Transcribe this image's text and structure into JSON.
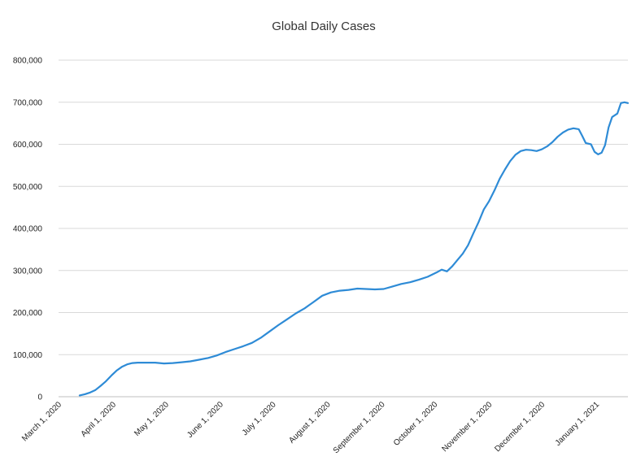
{
  "chart_data": {
    "type": "line",
    "title": "Global Daily Cases",
    "xlabel": "",
    "ylabel": "",
    "ylim": [
      0,
      800000
    ],
    "y_ticks": [
      0,
      100000,
      200000,
      300000,
      400000,
      500000,
      600000,
      700000,
      800000
    ],
    "y_tick_labels": [
      "0",
      "100,000",
      "200,000",
      "300,000",
      "400,000",
      "500,000",
      "600,000",
      "700,000",
      "800,000"
    ],
    "x_range": [
      "2020-03-01",
      "2021-01-19"
    ],
    "x_ticks": [
      "2020-03-01",
      "2020-04-01",
      "2020-05-01",
      "2020-06-01",
      "2020-07-01",
      "2020-08-01",
      "2020-09-01",
      "2020-10-01",
      "2020-11-01",
      "2020-12-01",
      "2021-01-01"
    ],
    "x_tick_labels": [
      "March 1, 2020",
      "April 1, 2020",
      "May 1, 2020",
      "June 1, 2020",
      "July 1, 2020",
      "August 1, 2020",
      "September 1, 2020",
      "October 1, 2020",
      "November 1, 2020",
      "December 1, 2020",
      "January 1, 2021"
    ],
    "grid": true,
    "legend": false,
    "series": [
      {
        "color": "#2e8bd6",
        "points": [
          [
            "2020-03-13",
            3000
          ],
          [
            "2020-03-16",
            6000
          ],
          [
            "2020-03-19",
            10000
          ],
          [
            "2020-03-22",
            16000
          ],
          [
            "2020-03-25",
            26000
          ],
          [
            "2020-03-28",
            37000
          ],
          [
            "2020-03-31",
            50000
          ],
          [
            "2020-04-03",
            62000
          ],
          [
            "2020-04-06",
            71000
          ],
          [
            "2020-04-09",
            77000
          ],
          [
            "2020-04-12",
            80000
          ],
          [
            "2020-04-15",
            81000
          ],
          [
            "2020-04-20",
            81000
          ],
          [
            "2020-04-25",
            81000
          ],
          [
            "2020-04-30",
            79000
          ],
          [
            "2020-05-05",
            80000
          ],
          [
            "2020-05-10",
            82000
          ],
          [
            "2020-05-15",
            84000
          ],
          [
            "2020-05-20",
            88000
          ],
          [
            "2020-05-25",
            92000
          ],
          [
            "2020-05-30",
            98000
          ],
          [
            "2020-06-04",
            106000
          ],
          [
            "2020-06-09",
            113000
          ],
          [
            "2020-06-14",
            120000
          ],
          [
            "2020-06-19",
            128000
          ],
          [
            "2020-06-24",
            140000
          ],
          [
            "2020-06-29",
            155000
          ],
          [
            "2020-07-04",
            170000
          ],
          [
            "2020-07-09",
            184000
          ],
          [
            "2020-07-14",
            198000
          ],
          [
            "2020-07-19",
            210000
          ],
          [
            "2020-07-24",
            225000
          ],
          [
            "2020-07-29",
            240000
          ],
          [
            "2020-08-03",
            248000
          ],
          [
            "2020-08-08",
            252000
          ],
          [
            "2020-08-13",
            254000
          ],
          [
            "2020-08-18",
            257000
          ],
          [
            "2020-08-23",
            256000
          ],
          [
            "2020-08-28",
            255000
          ],
          [
            "2020-09-02",
            256000
          ],
          [
            "2020-09-07",
            262000
          ],
          [
            "2020-09-12",
            268000
          ],
          [
            "2020-09-17",
            272000
          ],
          [
            "2020-09-22",
            278000
          ],
          [
            "2020-09-27",
            285000
          ],
          [
            "2020-10-02",
            295000
          ],
          [
            "2020-10-05",
            302000
          ],
          [
            "2020-10-08",
            298000
          ],
          [
            "2020-10-11",
            310000
          ],
          [
            "2020-10-14",
            325000
          ],
          [
            "2020-10-17",
            340000
          ],
          [
            "2020-10-20",
            360000
          ],
          [
            "2020-10-23",
            388000
          ],
          [
            "2020-10-26",
            415000
          ],
          [
            "2020-10-29",
            445000
          ],
          [
            "2020-11-01",
            465000
          ],
          [
            "2020-11-04",
            490000
          ],
          [
            "2020-11-07",
            518000
          ],
          [
            "2020-11-10",
            540000
          ],
          [
            "2020-11-13",
            560000
          ],
          [
            "2020-11-16",
            575000
          ],
          [
            "2020-11-19",
            584000
          ],
          [
            "2020-11-22",
            587000
          ],
          [
            "2020-11-25",
            586000
          ],
          [
            "2020-11-28",
            584000
          ],
          [
            "2020-12-01",
            588000
          ],
          [
            "2020-12-04",
            595000
          ],
          [
            "2020-12-07",
            605000
          ],
          [
            "2020-12-10",
            618000
          ],
          [
            "2020-12-13",
            628000
          ],
          [
            "2020-12-16",
            635000
          ],
          [
            "2020-12-19",
            638000
          ],
          [
            "2020-12-22",
            636000
          ],
          [
            "2020-12-24",
            620000
          ],
          [
            "2020-12-26",
            603000
          ],
          [
            "2020-12-29",
            600000
          ],
          [
            "2020-12-31",
            582000
          ],
          [
            "2021-01-02",
            576000
          ],
          [
            "2021-01-04",
            580000
          ],
          [
            "2021-01-06",
            598000
          ],
          [
            "2021-01-08",
            640000
          ],
          [
            "2021-01-10",
            665000
          ],
          [
            "2021-01-13",
            673000
          ],
          [
            "2021-01-15",
            698000
          ],
          [
            "2021-01-17",
            700000
          ],
          [
            "2021-01-19",
            698000
          ]
        ]
      }
    ]
  }
}
